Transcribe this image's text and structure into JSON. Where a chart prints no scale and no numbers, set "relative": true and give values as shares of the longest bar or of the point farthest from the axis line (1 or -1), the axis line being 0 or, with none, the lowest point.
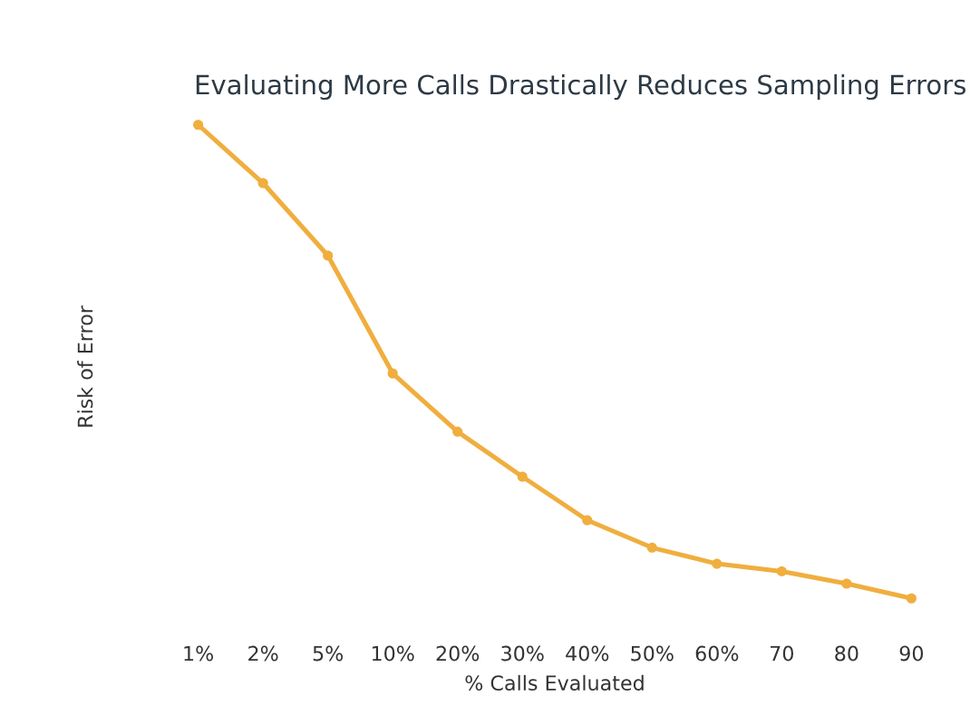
{
  "chart_data": {
    "type": "line",
    "title": "Evaluating More Calls Drastically Reduces Sampling Errors",
    "xlabel": "% Calls Evaluated",
    "ylabel": "Risk of Error",
    "relative": true,
    "categories": [
      "1%",
      "2%",
      "5%",
      "10%",
      "20%",
      "30%",
      "40%",
      "50%",
      "60%",
      "70",
      "80",
      "90"
    ],
    "series": [
      {
        "color": "#f0ae3e",
        "values": [
          1,
          0.877,
          0.724,
          0.475,
          0.352,
          0.257,
          0.165,
          0.107,
          0.073,
          0.057,
          0.031,
          0
        ]
      }
    ],
    "marker": "circle",
    "line_style": "solid"
  }
}
